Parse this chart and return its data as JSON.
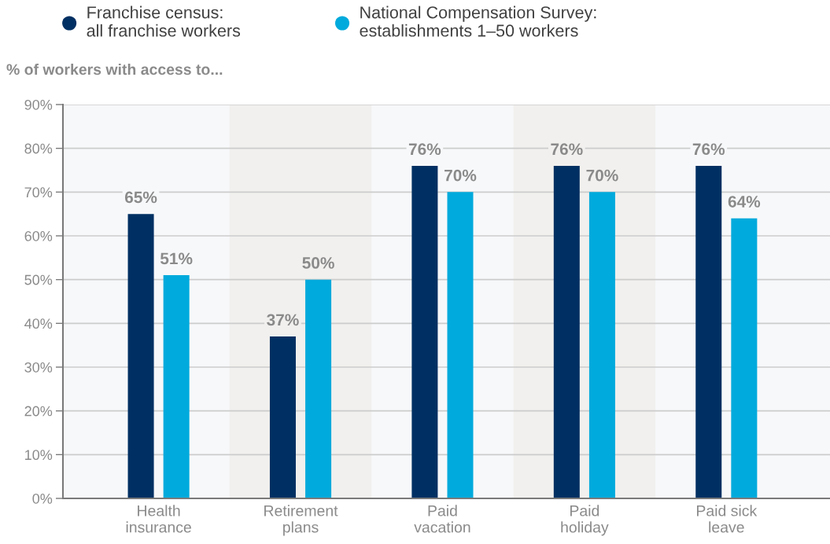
{
  "chart_data": {
    "type": "bar",
    "ylabel": "% of workers with access to...",
    "categories": [
      "Health\ninsurance",
      "Retirement\nplans",
      "Paid\nvacation",
      "Paid\nholiday",
      "Paid sick\nleave"
    ],
    "series": [
      {
        "name": "Franchise census:\nall franchise workers",
        "color": "#003063",
        "values": [
          65,
          37,
          76,
          76,
          76
        ],
        "value_labels": [
          "65%",
          "37%",
          "76%",
          "76%",
          "76%"
        ]
      },
      {
        "name": "National Compensation Survey:\nestablishments 1–50 workers",
        "color": "#00aadc",
        "values": [
          51,
          50,
          70,
          70,
          64
        ],
        "value_labels": [
          "51%",
          "50%",
          "70%",
          "70%",
          "64%"
        ]
      }
    ],
    "ylim": [
      0,
      90
    ],
    "yticks": [
      {
        "value": 0,
        "label": "0%"
      },
      {
        "value": 10,
        "label": "10%"
      },
      {
        "value": 20,
        "label": "20%"
      },
      {
        "value": 30,
        "label": "30%"
      },
      {
        "value": 40,
        "label": "40%"
      },
      {
        "value": 50,
        "label": "50%"
      },
      {
        "value": 60,
        "label": "60%"
      },
      {
        "value": 70,
        "label": "70%"
      },
      {
        "value": 80,
        "label": "80%"
      },
      {
        "value": 90,
        "label": "90%"
      }
    ],
    "grid": "y",
    "legend": "top",
    "bands": [
      {
        "axis": "x",
        "from": "Retirement\nplans",
        "to": "Retirement\nplans",
        "color": "#f1f0ee"
      },
      {
        "axis": "x",
        "from": "Paid\nholiday",
        "to": "Paid\nholiday",
        "color": "#f1f0ee"
      }
    ]
  }
}
